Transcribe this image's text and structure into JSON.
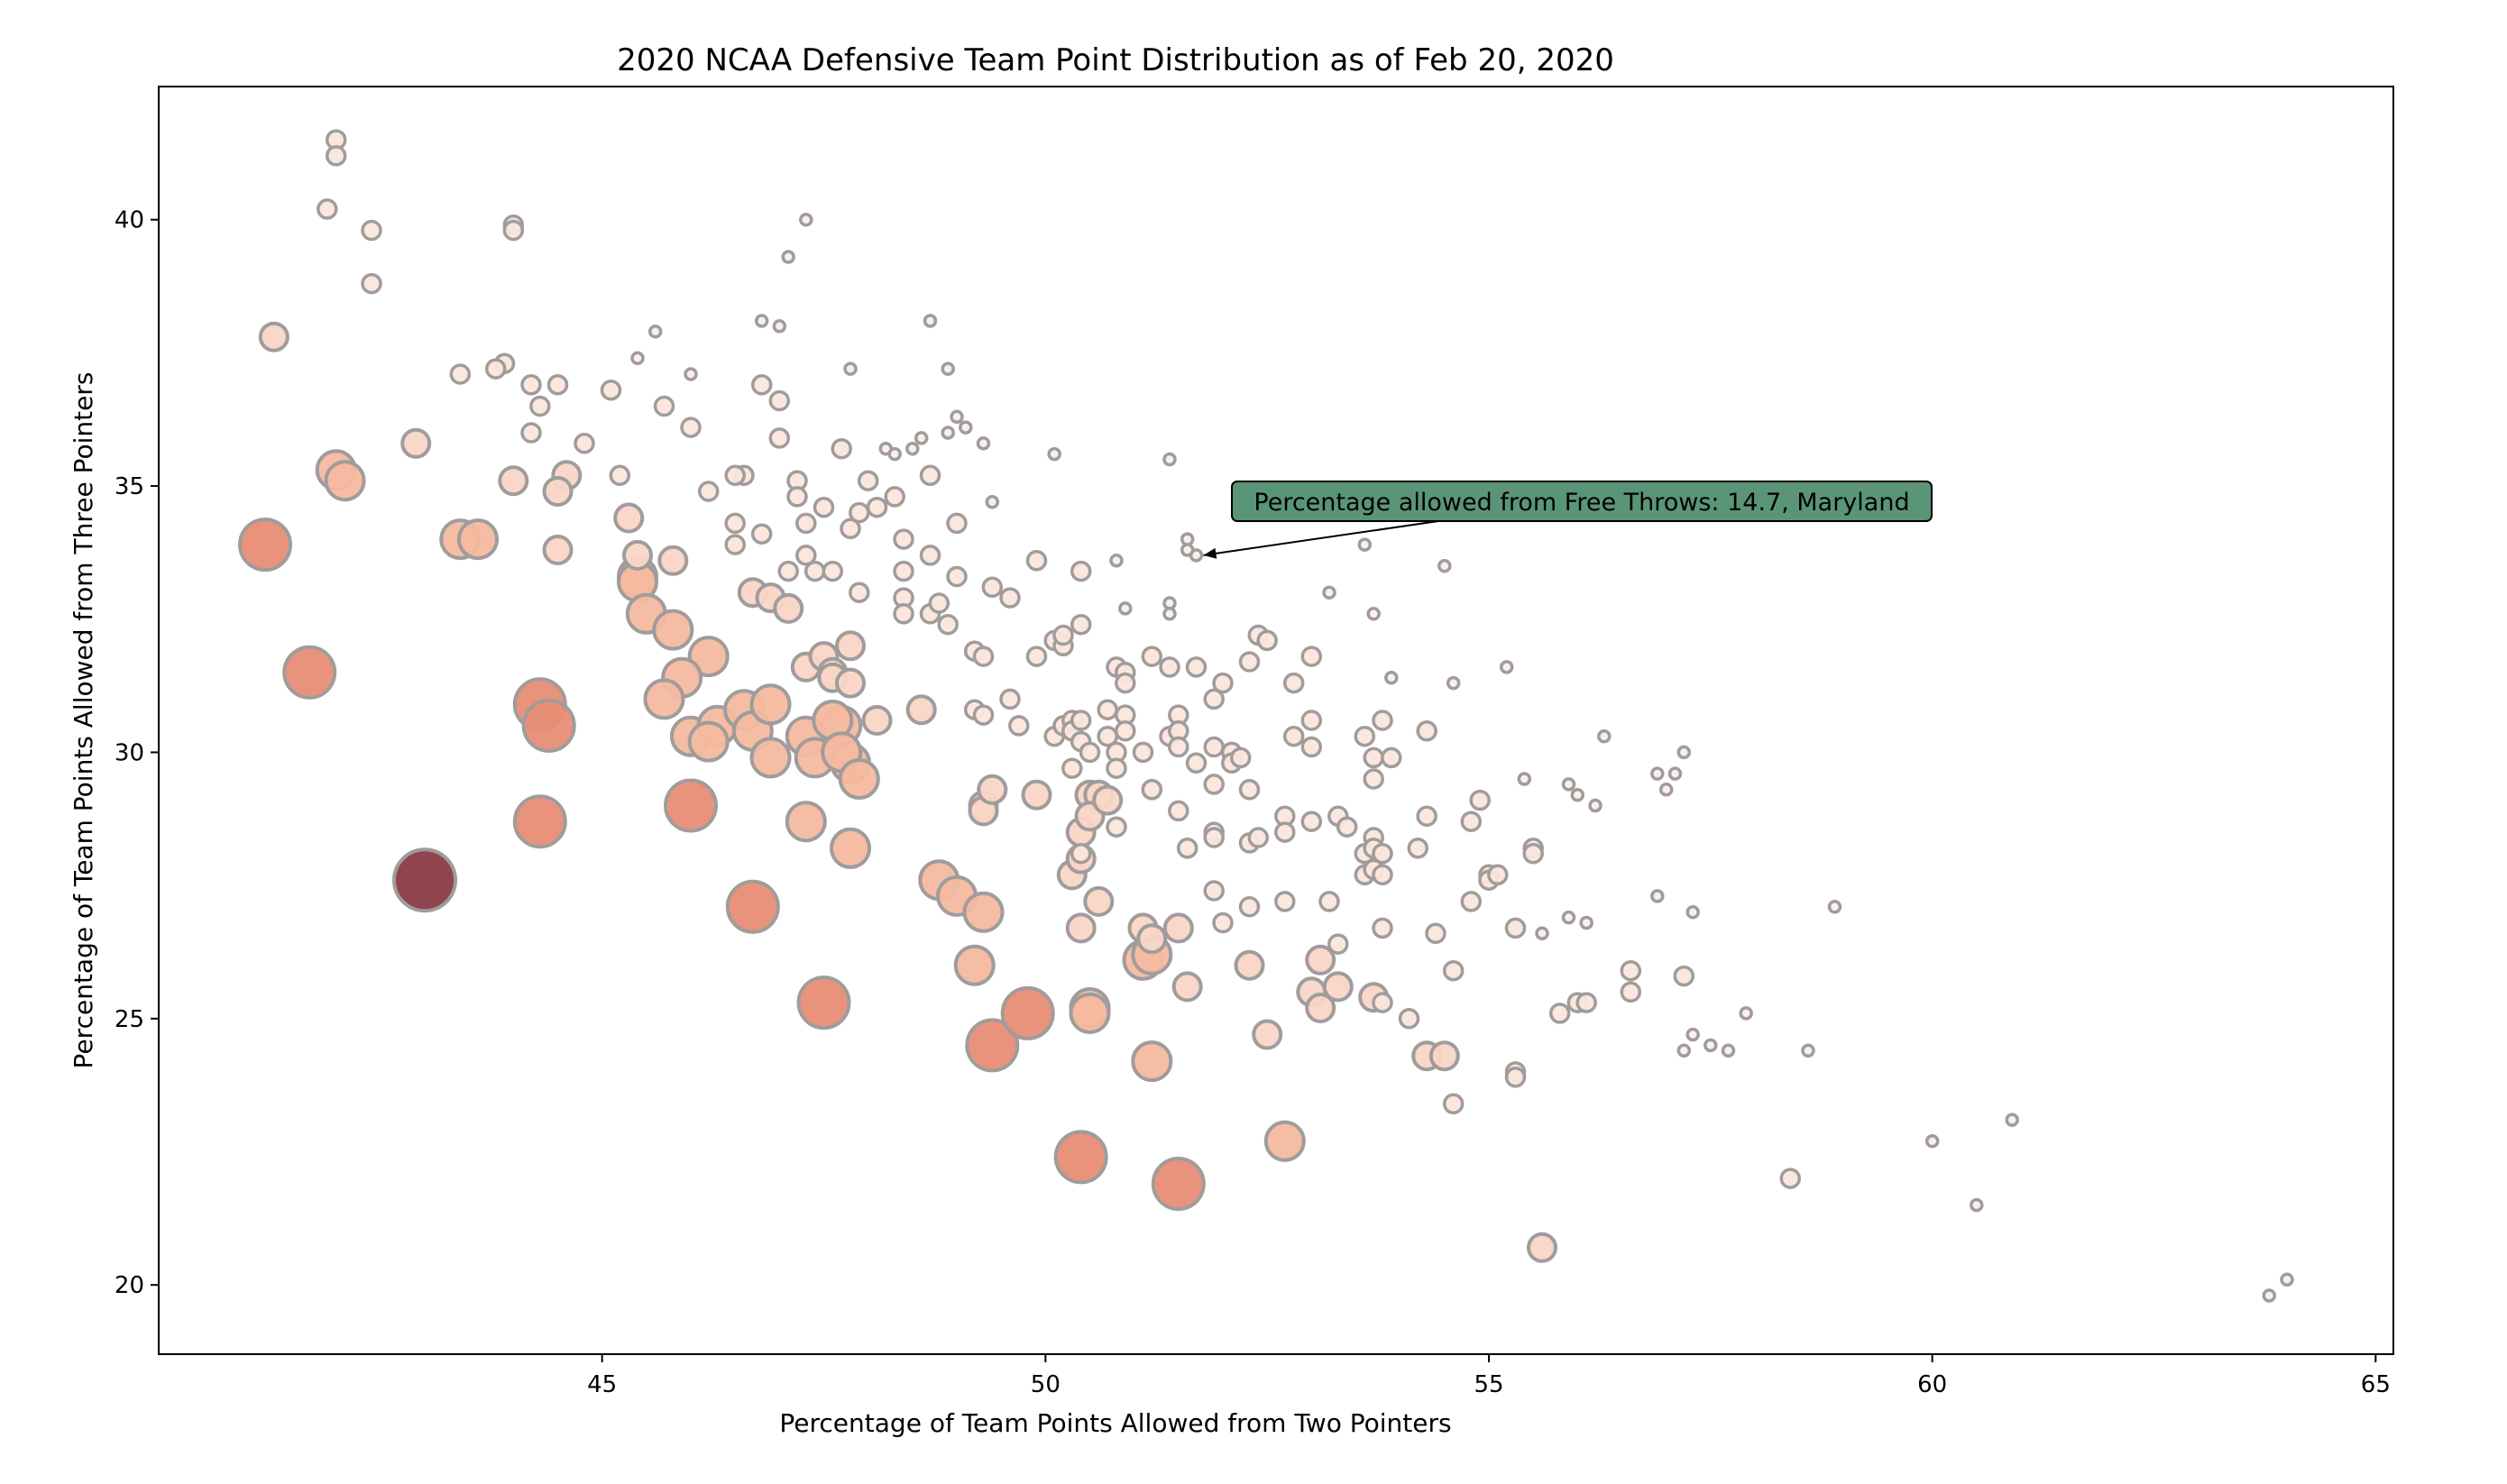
{
  "chart_data": {
    "type": "scatter",
    "title": "2020 NCAA Defensive Team Point Distribution as of Feb 20, 2020",
    "xlabel": "Percentage of Team Points Allowed from Two Pointers",
    "ylabel": "Percentage of Team Points Allowed from Three Pointers",
    "xlim": [
      40.0,
      65.2
    ],
    "ylim": [
      18.7,
      42.5
    ],
    "xticks": [
      45,
      50,
      55,
      60,
      65
    ],
    "yticks": [
      20,
      25,
      30,
      35,
      40
    ],
    "grid": false,
    "size_encoding": "bubble size and color increase with percentage allowed from free throws",
    "colors": {
      "edge": "#a09c9c",
      "small": "#fbeee8",
      "mid": "#f2a888",
      "large": "#e06a5c",
      "max": "#8a3a44",
      "annotation_box": "#5a9578"
    },
    "annotation": {
      "text": "Percentage allowed from Free Throws: 14.7, Maryland",
      "x": 51.7,
      "y": 33.7
    },
    "points": [
      [
        42,
        41.5,
        2
      ],
      [
        42,
        41.2,
        2
      ],
      [
        41.9,
        40.2,
        2
      ],
      [
        42.4,
        39.8,
        2
      ],
      [
        42.4,
        38.8,
        2
      ],
      [
        44,
        39.9,
        2
      ],
      [
        44,
        39.8,
        2
      ],
      [
        47.3,
        40,
        1
      ],
      [
        47.1,
        39.3,
        1
      ],
      [
        41.3,
        37.8,
        3
      ],
      [
        43.4,
        37.1,
        2
      ],
      [
        43.9,
        37.3,
        2
      ],
      [
        43.8,
        37.2,
        2
      ],
      [
        44.2,
        36.9,
        2
      ],
      [
        44.5,
        36.9,
        2
      ],
      [
        45.1,
        36.8,
        2
      ],
      [
        45.4,
        37.4,
        1
      ],
      [
        45.6,
        37.9,
        1
      ],
      [
        46,
        37.1,
        1
      ],
      [
        46.8,
        38.1,
        1
      ],
      [
        47,
        38,
        1
      ],
      [
        47.8,
        37.2,
        1
      ],
      [
        48.7,
        38.1,
        1
      ],
      [
        48.9,
        37.2,
        1
      ],
      [
        44.3,
        36.5,
        2
      ],
      [
        44.2,
        36,
        2
      ],
      [
        44.8,
        35.8,
        2
      ],
      [
        45.7,
        36.5,
        2
      ],
      [
        46,
        36.1,
        2
      ],
      [
        46.8,
        36.9,
        2
      ],
      [
        47,
        36.6,
        2
      ],
      [
        47,
        35.9,
        2
      ],
      [
        49,
        36.3,
        1
      ],
      [
        49.3,
        35.8,
        1
      ],
      [
        49.1,
        36.1,
        1
      ],
      [
        48.5,
        35.7,
        1
      ],
      [
        48.6,
        35.9,
        1
      ],
      [
        48.9,
        36,
        1
      ],
      [
        48.2,
        35.7,
        1
      ],
      [
        48.3,
        35.6,
        1
      ],
      [
        47.7,
        35.7,
        2
      ],
      [
        50.1,
        35.6,
        1
      ],
      [
        51.4,
        35.5,
        1
      ],
      [
        42.9,
        35.8,
        3
      ],
      [
        42,
        35.3,
        4
      ],
      [
        42.1,
        35.1,
        4
      ],
      [
        44,
        35.1,
        3
      ],
      [
        44.6,
        35.2,
        3
      ],
      [
        44.5,
        34.9,
        3
      ],
      [
        45.2,
        35.2,
        2
      ],
      [
        46.2,
        34.9,
        2
      ],
      [
        46.6,
        35.2,
        2
      ],
      [
        46.5,
        35.2,
        2
      ],
      [
        47.2,
        35.1,
        2
      ],
      [
        47.2,
        34.8,
        2
      ],
      [
        48,
        35.1,
        2
      ],
      [
        47.9,
        34.5,
        2
      ],
      [
        48.1,
        34.6,
        2
      ],
      [
        48.3,
        34.8,
        2
      ],
      [
        47.5,
        34.6,
        2
      ],
      [
        48.7,
        35.2,
        2
      ],
      [
        49.4,
        34.7,
        1
      ],
      [
        41.2,
        33.9,
        5
      ],
      [
        43.4,
        34,
        4
      ],
      [
        43.6,
        34,
        4
      ],
      [
        44.5,
        33.8,
        3
      ],
      [
        45.3,
        34.4,
        3
      ],
      [
        45.4,
        33.7,
        3
      ],
      [
        45.8,
        33.6,
        3
      ],
      [
        46.5,
        34.3,
        2
      ],
      [
        46.8,
        34.1,
        2
      ],
      [
        46.5,
        33.9,
        2
      ],
      [
        47.3,
        34.3,
        2
      ],
      [
        47.8,
        34.2,
        2
      ],
      [
        48.4,
        34,
        2
      ],
      [
        49,
        34.3,
        2
      ],
      [
        51.7,
        33.7,
        1
      ],
      [
        51.6,
        34,
        1
      ],
      [
        51.6,
        33.8,
        1
      ],
      [
        53.6,
        33.9,
        1
      ],
      [
        54.5,
        33.5,
        1
      ],
      [
        45.4,
        33.3,
        4
      ],
      [
        45.4,
        33.2,
        4
      ],
      [
        45.5,
        32.6,
        4
      ],
      [
        45.8,
        32.3,
        4
      ],
      [
        46.7,
        33,
        3
      ],
      [
        46.9,
        32.9,
        3
      ],
      [
        47.1,
        32.7,
        3
      ],
      [
        47.1,
        33.4,
        2
      ],
      [
        47.3,
        33.7,
        2
      ],
      [
        47.4,
        33.4,
        2
      ],
      [
        47.6,
        33.4,
        2
      ],
      [
        47.9,
        33,
        2
      ],
      [
        48.4,
        33.4,
        2
      ],
      [
        48.4,
        32.9,
        2
      ],
      [
        48.4,
        32.6,
        2
      ],
      [
        48.7,
        32.6,
        2
      ],
      [
        48.7,
        33.7,
        2
      ],
      [
        48.8,
        32.8,
        2
      ],
      [
        48.9,
        32.4,
        2
      ],
      [
        49,
        33.3,
        2
      ],
      [
        49.4,
        33.1,
        2
      ],
      [
        49.6,
        32.9,
        2
      ],
      [
        49.9,
        33.6,
        2
      ],
      [
        50.4,
        33.4,
        2
      ],
      [
        50.8,
        33.6,
        1
      ],
      [
        50.9,
        32.7,
        1
      ],
      [
        51.4,
        32.8,
        1
      ],
      [
        51.4,
        32.6,
        1
      ],
      [
        46.2,
        31.8,
        4
      ],
      [
        45.9,
        31.4,
        4
      ],
      [
        45.7,
        31,
        4
      ],
      [
        47.3,
        31.6,
        3
      ],
      [
        47.5,
        31.8,
        3
      ],
      [
        47.6,
        31.5,
        3
      ],
      [
        47.6,
        31.4,
        3
      ],
      [
        47.8,
        31.3,
        3
      ],
      [
        47.8,
        32,
        3
      ],
      [
        49.2,
        31.9,
        2
      ],
      [
        49.3,
        31.8,
        2
      ],
      [
        49.9,
        31.8,
        2
      ],
      [
        50.1,
        32.1,
        2
      ],
      [
        50.2,
        32,
        2
      ],
      [
        50.4,
        32.4,
        2
      ],
      [
        50.2,
        32.2,
        2
      ],
      [
        50.8,
        31.6,
        2
      ],
      [
        50.9,
        31.5,
        2
      ],
      [
        50.9,
        31.3,
        2
      ],
      [
        51.2,
        31.8,
        2
      ],
      [
        51.4,
        31.6,
        2
      ],
      [
        51.7,
        31.6,
        2
      ],
      [
        52,
        31.3,
        2
      ],
      [
        51.9,
        31,
        2
      ],
      [
        52.3,
        31.7,
        2
      ],
      [
        52.4,
        32.2,
        2
      ],
      [
        52.5,
        32.1,
        2
      ],
      [
        53,
        31.8,
        2
      ],
      [
        52.8,
        31.3,
        2
      ],
      [
        53.2,
        33,
        1
      ],
      [
        53.7,
        32.6,
        1
      ],
      [
        53.9,
        31.4,
        1
      ],
      [
        54.6,
        31.3,
        1
      ],
      [
        55.2,
        31.6,
        1
      ],
      [
        41.7,
        31.5,
        5
      ],
      [
        44.3,
        30.9,
        5
      ],
      [
        44.4,
        30.5,
        5
      ],
      [
        46,
        30.3,
        4
      ],
      [
        46.3,
        30.5,
        4
      ],
      [
        46.6,
        30.8,
        4
      ],
      [
        46.2,
        30.2,
        4
      ],
      [
        46.7,
        30.4,
        4
      ],
      [
        46.9,
        30.9,
        4
      ],
      [
        46.9,
        29.9,
        4
      ],
      [
        47.3,
        30.3,
        4
      ],
      [
        47.4,
        29.9,
        4
      ],
      [
        47.7,
        30.5,
        4
      ],
      [
        47.6,
        30.6,
        4
      ],
      [
        47.8,
        29.8,
        4
      ],
      [
        47.7,
        30,
        4
      ],
      [
        47.9,
        29.5,
        4
      ],
      [
        48.1,
        30.6,
        3
      ],
      [
        48.6,
        30.8,
        3
      ],
      [
        49.2,
        30.8,
        2
      ],
      [
        49.3,
        30.7,
        2
      ],
      [
        49.6,
        31,
        2
      ],
      [
        49.7,
        30.5,
        2
      ],
      [
        50.1,
        30.3,
        2
      ],
      [
        50.2,
        30.5,
        2
      ],
      [
        50.3,
        30.6,
        2
      ],
      [
        50.3,
        30.4,
        2
      ],
      [
        50.4,
        30.6,
        2
      ],
      [
        50.4,
        30.2,
        2
      ],
      [
        50.5,
        30,
        2
      ],
      [
        50.3,
        29.7,
        2
      ],
      [
        50.7,
        30.8,
        2
      ],
      [
        50.7,
        30.3,
        2
      ],
      [
        50.8,
        30,
        2
      ],
      [
        50.8,
        29.7,
        2
      ],
      [
        50.9,
        30.7,
        2
      ],
      [
        50.9,
        30.4,
        2
      ],
      [
        51.1,
        30,
        2
      ],
      [
        51.4,
        30.3,
        2
      ],
      [
        51.5,
        30.7,
        2
      ],
      [
        51.5,
        30.4,
        2
      ],
      [
        51.5,
        30.1,
        2
      ],
      [
        51.7,
        29.8,
        2
      ],
      [
        51.9,
        30.1,
        2
      ],
      [
        52.1,
        30,
        2
      ],
      [
        52.1,
        29.8,
        2
      ],
      [
        52.2,
        29.9,
        2
      ],
      [
        52.8,
        30.3,
        2
      ],
      [
        53,
        30.6,
        2
      ],
      [
        53,
        30.1,
        2
      ],
      [
        53.6,
        30.3,
        2
      ],
      [
        53.7,
        29.9,
        2
      ],
      [
        53.8,
        30.6,
        2
      ],
      [
        53.9,
        29.9,
        2
      ],
      [
        54.3,
        30.4,
        2
      ],
      [
        56.3,
        30.3,
        1
      ],
      [
        57.2,
        30,
        1
      ],
      [
        56.9,
        29.6,
        1
      ],
      [
        57.1,
        29.6,
        1
      ],
      [
        57,
        29.3,
        1
      ],
      [
        44.3,
        28.7,
        5
      ],
      [
        46,
        29,
        5
      ],
      [
        47.3,
        28.7,
        4
      ],
      [
        47.8,
        28.2,
        4
      ],
      [
        49.3,
        29,
        3
      ],
      [
        49.3,
        28.9,
        3
      ],
      [
        49.4,
        29.3,
        3
      ],
      [
        49.9,
        29.2,
        3
      ],
      [
        50.5,
        29.2,
        3
      ],
      [
        50.6,
        29.2,
        3
      ],
      [
        50.4,
        28.5,
        3
      ],
      [
        50.5,
        28.8,
        3
      ],
      [
        50.7,
        29.1,
        3
      ],
      [
        50.8,
        28.6,
        2
      ],
      [
        50.4,
        28.1,
        2
      ],
      [
        51.2,
        29.3,
        2
      ],
      [
        51.2,
        29.3,
        2
      ],
      [
        51.5,
        28.9,
        2
      ],
      [
        51.9,
        29.4,
        2
      ],
      [
        51.9,
        28.5,
        2
      ],
      [
        51.9,
        28.4,
        2
      ],
      [
        52.3,
        29.3,
        2
      ],
      [
        52.3,
        28.3,
        2
      ],
      [
        52.4,
        28.4,
        2
      ],
      [
        52.7,
        28.8,
        2
      ],
      [
        52.7,
        28.5,
        2
      ],
      [
        53,
        28.7,
        2
      ],
      [
        53.3,
        28.8,
        2
      ],
      [
        53.4,
        28.6,
        2
      ],
      [
        53.6,
        28.1,
        2
      ],
      [
        53.7,
        28.4,
        2
      ],
      [
        53.7,
        28.2,
        2
      ],
      [
        53.6,
        27.7,
        2
      ],
      [
        53.8,
        28.1,
        2
      ],
      [
        53.7,
        27.8,
        2
      ],
      [
        53.8,
        27.7,
        2
      ],
      [
        53.7,
        29.5,
        2
      ],
      [
        54.2,
        28.2,
        2
      ],
      [
        54.3,
        28.8,
        2
      ],
      [
        54.8,
        28.7,
        2
      ],
      [
        54.9,
        29.1,
        2
      ],
      [
        55.4,
        29.5,
        1
      ],
      [
        55.9,
        29.4,
        1
      ],
      [
        56,
        29.2,
        1
      ],
      [
        56.2,
        29,
        1
      ],
      [
        55.5,
        28.2,
        2
      ],
      [
        55.5,
        28.1,
        2
      ],
      [
        43,
        27.6,
        6
      ],
      [
        46.7,
        27.1,
        5
      ],
      [
        48.8,
        27.6,
        4
      ],
      [
        49,
        27.3,
        4
      ],
      [
        49.3,
        27,
        4
      ],
      [
        50.3,
        27.7,
        3
      ],
      [
        50.4,
        28,
        3
      ],
      [
        50.6,
        27.2,
        3
      ],
      [
        50.4,
        26.7,
        3
      ],
      [
        51.1,
        26.7,
        3
      ],
      [
        51.2,
        26.5,
        3
      ],
      [
        51.5,
        26.7,
        3
      ],
      [
        51.6,
        28.2,
        2
      ],
      [
        51.9,
        27.4,
        2
      ],
      [
        52,
        26.8,
        2
      ],
      [
        52.3,
        27.1,
        2
      ],
      [
        52.7,
        27.2,
        2
      ],
      [
        53.2,
        27.2,
        2
      ],
      [
        53.3,
        26.4,
        2
      ],
      [
        53.8,
        26.7,
        2
      ],
      [
        54.4,
        26.6,
        2
      ],
      [
        54.8,
        27.2,
        2
      ],
      [
        55,
        27.7,
        2
      ],
      [
        55,
        27.6,
        2
      ],
      [
        55.1,
        27.7,
        2
      ],
      [
        55.3,
        26.7,
        2
      ],
      [
        55.6,
        26.6,
        1
      ],
      [
        55.9,
        26.9,
        1
      ],
      [
        56.1,
        26.8,
        1
      ],
      [
        56.9,
        27.3,
        1
      ],
      [
        57.3,
        27,
        1
      ],
      [
        58.9,
        27.1,
        1
      ],
      [
        49.2,
        26,
        4
      ],
      [
        51.1,
        26.1,
        4
      ],
      [
        51.2,
        26.2,
        4
      ],
      [
        51.6,
        25.6,
        3
      ],
      [
        52.3,
        26,
        3
      ],
      [
        53.1,
        26.1,
        3
      ],
      [
        52.5,
        24.7,
        3
      ],
      [
        53,
        25.5,
        3
      ],
      [
        53.1,
        25.2,
        3
      ],
      [
        53.3,
        25.6,
        3
      ],
      [
        53.7,
        25.4,
        3
      ],
      [
        53.8,
        25.3,
        2
      ],
      [
        54.1,
        25,
        2
      ],
      [
        54.6,
        25.9,
        2
      ],
      [
        55.8,
        25.1,
        2
      ],
      [
        56,
        25.3,
        2
      ],
      [
        56.1,
        25.3,
        2
      ],
      [
        56.6,
        25.9,
        2
      ],
      [
        56.6,
        25.5,
        2
      ],
      [
        57.2,
        25.8,
        2
      ],
      [
        57.9,
        25.1,
        1
      ],
      [
        47.5,
        25.3,
        5
      ],
      [
        49.4,
        24.5,
        5
      ],
      [
        49.8,
        25.1,
        5
      ],
      [
        50.5,
        25.2,
        4
      ],
      [
        50.5,
        25.1,
        4
      ],
      [
        51.2,
        24.2,
        4
      ],
      [
        54.3,
        24.3,
        3
      ],
      [
        54.5,
        24.3,
        3
      ],
      [
        55.3,
        24,
        2
      ],
      [
        55.3,
        23.9,
        2
      ],
      [
        54.6,
        23.4,
        2
      ],
      [
        57.2,
        24.4,
        1
      ],
      [
        57.3,
        24.7,
        1
      ],
      [
        57.5,
        24.5,
        1
      ],
      [
        57.7,
        24.4,
        1
      ],
      [
        58.6,
        24.4,
        1
      ],
      [
        50.4,
        22.4,
        5
      ],
      [
        51.5,
        21.9,
        5
      ],
      [
        52.7,
        22.7,
        4
      ],
      [
        55.6,
        20.7,
        3
      ],
      [
        58.4,
        22,
        2
      ],
      [
        60,
        22.7,
        1
      ],
      [
        60.5,
        21.5,
        1
      ],
      [
        60.9,
        23.1,
        1
      ],
      [
        63.8,
        19.8,
        1
      ],
      [
        64,
        20.1,
        1
      ]
    ]
  }
}
